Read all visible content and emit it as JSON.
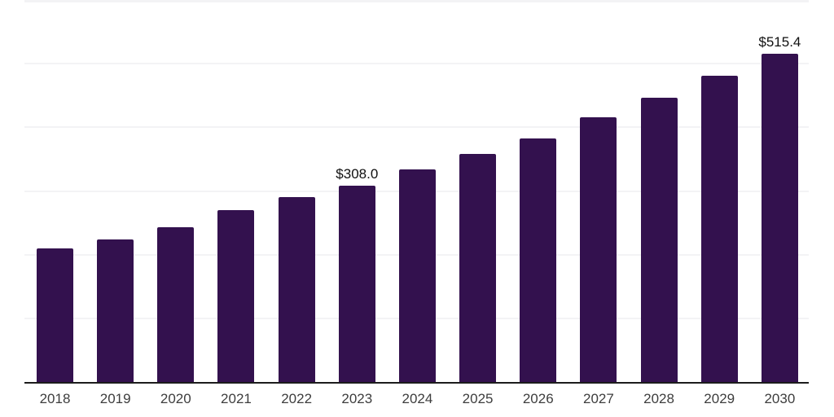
{
  "chart_data": {
    "type": "bar",
    "title": "",
    "xlabel": "",
    "ylabel": "",
    "categories": [
      "2018",
      "2019",
      "2020",
      "2021",
      "2022",
      "2023",
      "2024",
      "2025",
      "2026",
      "2027",
      "2028",
      "2029",
      "2030"
    ],
    "values": [
      209.6,
      223.4,
      242.6,
      270.0,
      289.9,
      308.0,
      334.5,
      358.6,
      383.0,
      416.2,
      447.0,
      481.5,
      515.4
    ],
    "annotations": [
      {
        "category": "2023",
        "text": "$308.0"
      },
      {
        "category": "2030",
        "text": "$515.4"
      }
    ],
    "ylim": [
      0,
      600
    ],
    "grid_step": 100,
    "grid": true,
    "legend": false,
    "colors": {
      "bar": "#33114E",
      "gridline": "#f3f3f5",
      "axis_line": "#1c1c1c",
      "tick_label": "#3d3d3d",
      "value_label": "#101010"
    }
  }
}
